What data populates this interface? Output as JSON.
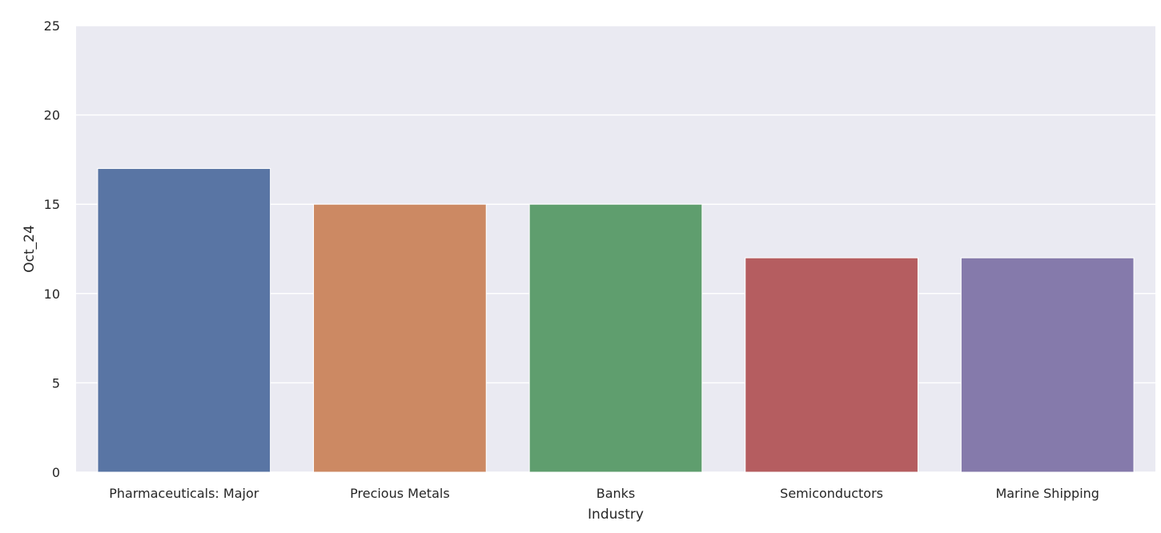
{
  "chart_data": {
    "type": "bar",
    "title": "",
    "xlabel": "Industry",
    "ylabel": "Oct_24",
    "categories": [
      "Pharmaceuticals: Major",
      "Precious Metals",
      "Banks",
      "Semiconductors",
      "Marine Shipping"
    ],
    "values": [
      17,
      15,
      15,
      12,
      12
    ],
    "ylim": [
      0,
      25
    ],
    "yticks": [
      "0",
      "5",
      "10",
      "15",
      "20",
      "25"
    ],
    "grid": true,
    "colors": [
      "#5975a4",
      "#cc8963",
      "#5f9e6e",
      "#b55d60",
      "#857aab"
    ],
    "plot_background": "#eaeaf2"
  }
}
